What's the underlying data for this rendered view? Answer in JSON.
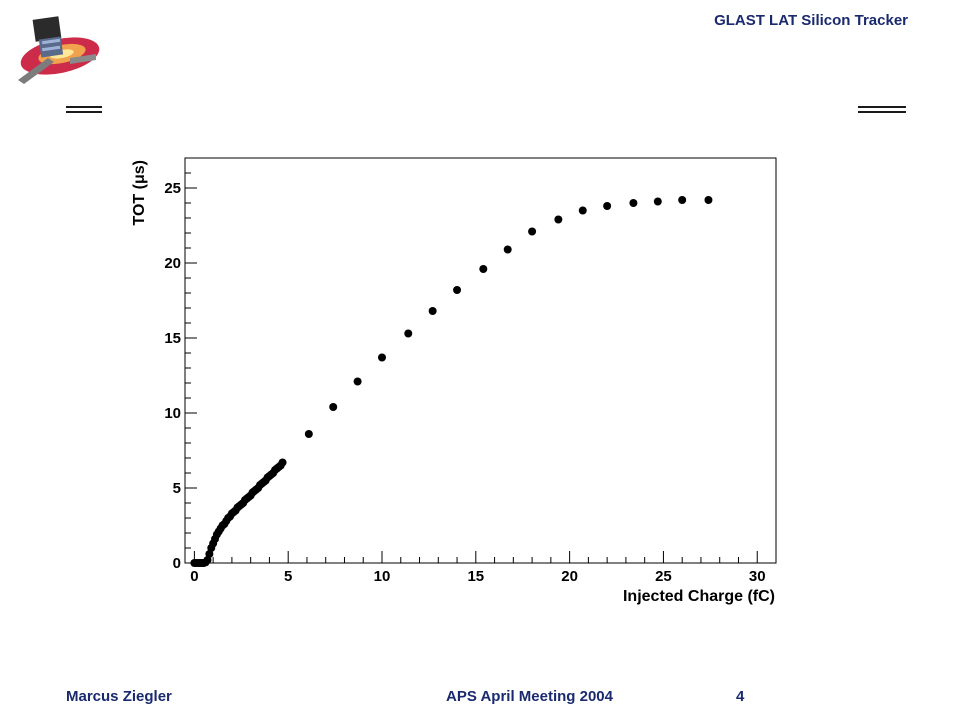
{
  "header": {
    "title": "GLAST LAT Silicon Tracker"
  },
  "footer": {
    "author": "Marcus Ziegler",
    "meeting": "APS April Meeting 2004",
    "page": "4"
  },
  "chart_data": {
    "type": "scatter",
    "title": "",
    "xlabel": "Injected Charge (fC)",
    "ylabel": "TOT (μs)",
    "xlim": [
      -0.5,
      31
    ],
    "ylim": [
      0,
      27
    ],
    "xticks": [
      0,
      5,
      10,
      15,
      20,
      25,
      30
    ],
    "yticks": [
      0,
      5,
      10,
      15,
      20,
      25
    ],
    "grid": false,
    "series": [
      {
        "x": [
          0.0,
          0.1,
          0.2,
          0.3,
          0.4,
          0.5,
          0.6,
          0.7,
          0.8,
          0.9,
          1.0,
          1.1,
          1.2,
          1.3,
          1.4,
          1.5,
          1.6,
          1.7,
          1.8,
          1.9,
          2.0,
          2.1,
          2.2,
          2.3,
          2.4,
          2.5,
          2.6,
          2.7,
          2.8,
          2.9,
          3.0,
          3.1,
          3.2,
          3.3,
          3.4,
          3.5,
          3.6,
          3.7,
          3.8,
          3.9,
          4.0,
          4.1,
          4.2,
          4.3,
          4.4,
          4.5,
          4.6,
          4.7,
          6.1,
          7.4,
          8.7,
          10.0,
          11.4,
          12.7,
          14.0,
          15.4,
          16.7,
          18.0,
          19.4,
          20.7,
          22.0,
          23.4,
          24.7,
          26.0,
          27.4
        ],
        "y": [
          0.0,
          0.0,
          0.0,
          0.0,
          0.0,
          0.0,
          0.05,
          0.2,
          0.6,
          1.0,
          1.3,
          1.6,
          1.9,
          2.1,
          2.3,
          2.5,
          2.6,
          2.8,
          3.0,
          3.1,
          3.3,
          3.4,
          3.5,
          3.7,
          3.8,
          3.9,
          4.0,
          4.2,
          4.3,
          4.4,
          4.5,
          4.7,
          4.8,
          4.9,
          5.0,
          5.2,
          5.3,
          5.4,
          5.5,
          5.7,
          5.8,
          5.9,
          6.0,
          6.2,
          6.3,
          6.4,
          6.5,
          6.7,
          8.6,
          10.4,
          12.1,
          13.7,
          15.3,
          16.8,
          18.2,
          19.6,
          20.9,
          22.1,
          22.9,
          23.5,
          23.8,
          24.0,
          24.1,
          24.2,
          24.2
        ]
      }
    ]
  }
}
